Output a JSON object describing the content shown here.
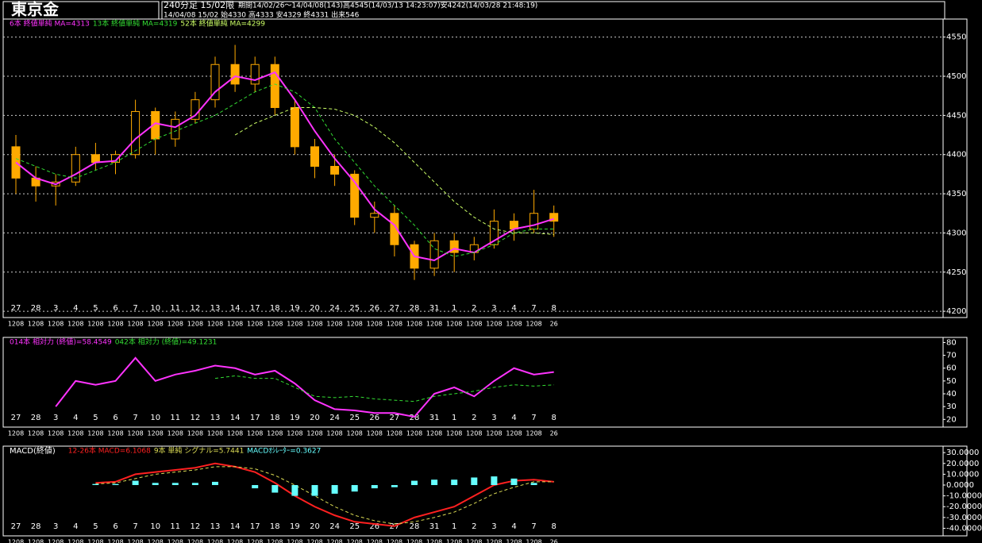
{
  "header": {
    "title": "東京金",
    "contract": "240分足 15/02限",
    "period": "期間14/02/26～14/04/08(143)高4545(14/03/13 14:23:07)安4242(14/03/28 21:48:19)",
    "last_bar": "14/04/08 15/02 始4330 高4333 安4329 終4331 出来546"
  },
  "chart_data": [
    {
      "type": "candlestick",
      "categories": [
        "27",
        "28",
        "3",
        "4",
        "5",
        "6",
        "7",
        "10",
        "11",
        "12",
        "13",
        "14",
        "17",
        "18",
        "19",
        "20",
        "24",
        "25",
        "26",
        "27",
        "28",
        "31",
        "1",
        "2",
        "3",
        "4",
        "7",
        "8"
      ],
      "time_labels": [
        "1208",
        "1208",
        "1208",
        "1208",
        "1208",
        "1208",
        "1208",
        "1208",
        "1208",
        "1208",
        "1208",
        "1208",
        "1208",
        "1208",
        "1208",
        "1208",
        "1208",
        "1208",
        "1208",
        "1208",
        "1208",
        "1208",
        "1208",
        "1208",
        "1208",
        "1208",
        "1208",
        "26"
      ],
      "open": [
        4410,
        4370,
        4360,
        4365,
        4400,
        4390,
        4400,
        4455,
        4420,
        4445,
        4470,
        4515,
        4490,
        4515,
        4460,
        4410,
        4385,
        4375,
        4320,
        4325,
        4285,
        4255,
        4290,
        4275,
        4285,
        4315,
        4305,
        4325
      ],
      "high": [
        4425,
        4385,
        4375,
        4410,
        4415,
        4405,
        4470,
        4460,
        4455,
        4480,
        4525,
        4540,
        4525,
        4525,
        4470,
        4420,
        4400,
        4380,
        4340,
        4335,
        4290,
        4300,
        4300,
        4295,
        4330,
        4325,
        4355,
        4335
      ],
      "low": [
        4350,
        4340,
        4335,
        4360,
        4380,
        4375,
        4395,
        4400,
        4410,
        4440,
        4460,
        4480,
        4480,
        4450,
        4400,
        4370,
        4360,
        4310,
        4300,
        4270,
        4240,
        4245,
        4250,
        4265,
        4280,
        4290,
        4300,
        4295
      ],
      "close": [
        4370,
        4360,
        4365,
        4400,
        4390,
        4400,
        4455,
        4420,
        4445,
        4470,
        4515,
        4490,
        4515,
        4460,
        4410,
        4385,
        4375,
        4320,
        4325,
        4285,
        4255,
        4290,
        4275,
        4285,
        4315,
        4305,
        4325,
        4315
      ],
      "candle_color": "#ffaa00",
      "series": [
        {
          "name": "6本 終値単純 MA=4313",
          "color": "#ff33ff",
          "style": "line",
          "values": [
            4390,
            4370,
            4362,
            4375,
            4390,
            4392,
            4420,
            4440,
            4435,
            4450,
            4480,
            4500,
            4495,
            4505,
            4470,
            4430,
            4395,
            4365,
            4330,
            4310,
            4270,
            4265,
            4280,
            4275,
            4290,
            4305,
            4310,
            4318
          ]
        },
        {
          "name": "13本 終値単純 MA=4319",
          "color": "#33dd33",
          "style": "dashed",
          "values": [
            4395,
            4385,
            4375,
            4370,
            4380,
            4390,
            4405,
            4420,
            4430,
            4440,
            4450,
            4465,
            4480,
            4490,
            4480,
            4460,
            4420,
            4390,
            4360,
            4335,
            4310,
            4280,
            4270,
            4275,
            4285,
            4300,
            4305,
            4305
          ]
        },
        {
          "name": "52本 終値単純 MA=4299",
          "color": "#ccff66",
          "style": "dashed",
          "values": [
            null,
            null,
            null,
            null,
            null,
            null,
            null,
            null,
            null,
            null,
            null,
            4425,
            4440,
            4450,
            4460,
            4460,
            4458,
            4450,
            4435,
            4415,
            4390,
            4365,
            4340,
            4320,
            4305,
            4300,
            4300,
            4298
          ]
        }
      ],
      "ylim": [
        4192,
        4573
      ],
      "yticks": [
        4200,
        4250,
        4300,
        4350,
        4400,
        4450,
        4500,
        4550
      ],
      "grid": true
    },
    {
      "type": "line",
      "categories": [
        "27",
        "28",
        "3",
        "4",
        "5",
        "6",
        "7",
        "10",
        "11",
        "12",
        "13",
        "14",
        "17",
        "18",
        "19",
        "20",
        "24",
        "25",
        "26",
        "27",
        "28",
        "31",
        "1",
        "2",
        "3",
        "4",
        "7",
        "8"
      ],
      "time_labels": [
        "1208",
        "1208",
        "1208",
        "1208",
        "1208",
        "1208",
        "1208",
        "1208",
        "1208",
        "1208",
        "1208",
        "1208",
        "1208",
        "1208",
        "1208",
        "1208",
        "1208",
        "1208",
        "1208",
        "1208",
        "1208",
        "1208",
        "1208",
        "1208",
        "1208",
        "1208",
        "1208",
        "26"
      ],
      "series": [
        {
          "name": "014本 相対力 (終値)=58.4549",
          "color": "#ff33ff",
          "style": "line",
          "values": [
            null,
            null,
            30,
            50,
            47,
            50,
            68,
            50,
            55,
            58,
            62,
            60,
            55,
            58,
            48,
            35,
            28,
            27,
            25,
            25,
            22,
            40,
            45,
            38,
            50,
            60,
            55,
            57
          ]
        },
        {
          "name": "042本 相対力 (終値)=49.1231",
          "color": "#33dd33",
          "style": "dashed",
          "values": [
            null,
            null,
            null,
            null,
            null,
            null,
            null,
            null,
            null,
            null,
            52,
            54,
            52,
            52,
            45,
            38,
            37,
            38,
            36,
            35,
            34,
            38,
            40,
            42,
            45,
            47,
            46,
            47
          ]
        }
      ],
      "ylim": [
        14,
        84
      ],
      "yticks": [
        20,
        30,
        40,
        50,
        60,
        70,
        80
      ],
      "grid": false
    },
    {
      "type": "line",
      "title": "MACD(終値)",
      "categories": [
        "27",
        "28",
        "3",
        "4",
        "5",
        "6",
        "7",
        "10",
        "11",
        "12",
        "13",
        "14",
        "17",
        "18",
        "19",
        "20",
        "24",
        "25",
        "26",
        "27",
        "28",
        "31",
        "1",
        "2",
        "3",
        "4",
        "7",
        "8"
      ],
      "time_labels": [
        "1208",
        "1208",
        "1208",
        "1208",
        "1208",
        "1208",
        "1208",
        "1208",
        "1208",
        "1208",
        "1208",
        "1208",
        "1208",
        "1208",
        "1208",
        "1208",
        "1208",
        "1208",
        "1208",
        "1208",
        "1208",
        "1208",
        "1208",
        "1208",
        "1208",
        "1208",
        "1208",
        "26"
      ],
      "series": [
        {
          "name": "12-26本 MACD=6.1068",
          "color": "#ff2020",
          "style": "line",
          "values": [
            null,
            null,
            null,
            null,
            2,
            3,
            10,
            12,
            14,
            16,
            20,
            17,
            12,
            2,
            -10,
            -20,
            -28,
            -34,
            -36,
            -38,
            -30,
            -25,
            -20,
            -10,
            0,
            4,
            5,
            3
          ]
        },
        {
          "name": "9本 単純 シグナル=5.7441",
          "color": "#dddd55",
          "style": "dashed",
          "values": [
            null,
            null,
            null,
            null,
            1,
            2,
            6,
            10,
            12,
            14,
            17,
            17,
            15,
            9,
            0,
            -10,
            -20,
            -28,
            -33,
            -36,
            -34,
            -30,
            -25,
            -17,
            -8,
            -2,
            3,
            3
          ]
        },
        {
          "name": "MACDｵｼﾚｰﾀｰ=0.3627",
          "color": "#66ffff",
          "style": "bar",
          "values": [
            null,
            null,
            null,
            null,
            1,
            1,
            4,
            2,
            2,
            2,
            3,
            0,
            -3,
            -7,
            -10,
            -10,
            -8,
            -6,
            -3,
            -2,
            4,
            5,
            5,
            7,
            8,
            6,
            2,
            0
          ]
        }
      ],
      "ylim": [
        -47,
        36
      ],
      "yticks": [
        {
          "value": 30,
          "label": "30.0000"
        },
        {
          "value": 20,
          "label": "20.0000"
        },
        {
          "value": 10,
          "label": "10.0000"
        },
        {
          "value": 0,
          "label": "0.0000"
        },
        {
          "value": -10,
          "label": "-10.0000"
        },
        {
          "value": -20,
          "label": "-20.0000"
        },
        {
          "value": -30,
          "label": "-30.0000"
        },
        {
          "value": -40,
          "label": "-40.0000"
        }
      ],
      "grid": false
    }
  ]
}
